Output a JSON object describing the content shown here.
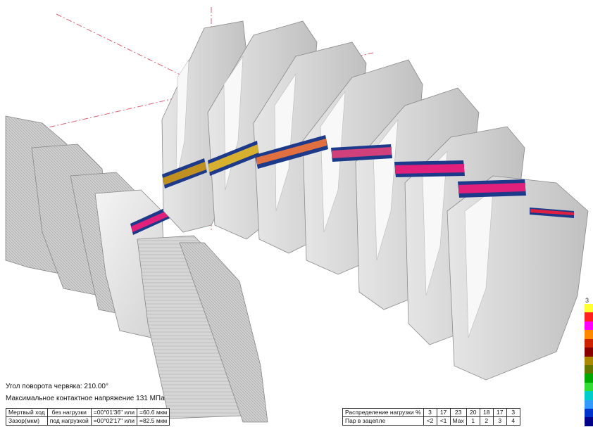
{
  "info": {
    "rotation_angle": "Угол поворота червяка: 210.00°",
    "max_contact_stress": "Максимальное контактное напряжение 131 МПа"
  },
  "left_table": [
    [
      "Мертвый ход",
      "без нагрузки",
      "=00°01'36\" или",
      "=60.6 мкм"
    ],
    [
      "Зазор(мкм)",
      "под нагрузкой",
      "=00°02'17\" или",
      "=82.5 мкм"
    ]
  ],
  "right_table": {
    "row1_label": "Распределение нагрузки %",
    "row1_values": [
      "3",
      "17",
      "23",
      "20",
      "18",
      "17",
      "3"
    ],
    "row2_label": "Пар в зацепле",
    "row2_values": [
      "<2",
      "<1",
      "Мах",
      "1",
      "2",
      "3",
      "4"
    ]
  },
  "scale": {
    "label": "3",
    "colors": [
      "#ffff33",
      "#ff2020",
      "#ff00ff",
      "#ff8800",
      "#cc2200",
      "#880000",
      "#aa8800",
      "#667700",
      "#00aa00",
      "#33dd33",
      "#00cccc",
      "#3399ff",
      "#0033cc",
      "#000088"
    ]
  }
}
